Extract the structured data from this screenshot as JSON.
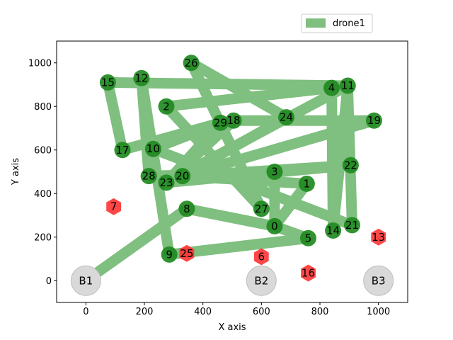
{
  "chart_data": {
    "type": "scatter",
    "xlabel": "X axis",
    "ylabel": "Y axis",
    "xlim": [
      -100,
      1100
    ],
    "ylim": [
      -100,
      1100
    ],
    "xticks": [
      0,
      200,
      400,
      600,
      800,
      1000
    ],
    "yticks": [
      0,
      200,
      400,
      600,
      800,
      1000
    ],
    "grid": false,
    "legend": {
      "placement": "top-right (above plot)",
      "entries": [
        {
          "name": "drone1",
          "color": "#7fbf7f"
        }
      ]
    },
    "colors": {
      "route": "#7fbf7f",
      "node": "#1f8a1f",
      "no_fly": "#ff3333",
      "base": "#d9d9d9"
    },
    "bases": [
      {
        "label": "B1",
        "x": 0,
        "y": 0
      },
      {
        "label": "B2",
        "x": 600,
        "y": 0
      },
      {
        "label": "B3",
        "x": 1000,
        "y": 0
      }
    ],
    "visited_points": [
      {
        "label": "0",
        "x": 645,
        "y": 250
      },
      {
        "label": "2",
        "x": 275,
        "y": 800
      },
      {
        "label": "3",
        "x": 645,
        "y": 500
      },
      {
        "label": "4",
        "x": 840,
        "y": 885
      },
      {
        "label": "5",
        "x": 760,
        "y": 195
      },
      {
        "label": "8",
        "x": 345,
        "y": 330
      },
      {
        "label": "9",
        "x": 285,
        "y": 120
      },
      {
        "label": "10",
        "x": 230,
        "y": 605
      },
      {
        "label": "11",
        "x": 895,
        "y": 895
      },
      {
        "label": "12",
        "x": 190,
        "y": 930
      },
      {
        "label": "14",
        "x": 845,
        "y": 230
      },
      {
        "label": "15",
        "x": 75,
        "y": 910
      },
      {
        "label": "17",
        "x": 125,
        "y": 600
      },
      {
        "label": "18",
        "x": 505,
        "y": 735
      },
      {
        "label": "19",
        "x": 985,
        "y": 735
      },
      {
        "label": "20",
        "x": 330,
        "y": 480
      },
      {
        "label": "21",
        "x": 910,
        "y": 255
      },
      {
        "label": "22",
        "x": 905,
        "y": 530
      },
      {
        "label": "23",
        "x": 275,
        "y": 450
      },
      {
        "label": "24",
        "x": 685,
        "y": 750
      },
      {
        "label": "26",
        "x": 360,
        "y": 1000
      },
      {
        "label": "27",
        "x": 600,
        "y": 330
      },
      {
        "label": "28",
        "x": 215,
        "y": 480
      },
      {
        "label": "29",
        "x": 460,
        "y": 725
      },
      {
        "label": "1",
        "x": 755,
        "y": 445
      }
    ],
    "no_fly_points": [
      {
        "label": "6",
        "x": 600,
        "y": 110
      },
      {
        "label": "7",
        "x": 95,
        "y": 340
      },
      {
        "label": "13",
        "x": 1000,
        "y": 200
      },
      {
        "label": "16",
        "x": 760,
        "y": 35
      },
      {
        "label": "25",
        "x": 345,
        "y": 125
      }
    ],
    "series": [
      {
        "name": "drone1",
        "route": [
          "B1",
          "8",
          "0",
          "3",
          "28",
          "12",
          "9",
          "5",
          "0",
          "1",
          "20",
          "22",
          "23",
          "18",
          "19",
          "20",
          "24",
          "26",
          "27",
          "2",
          "4",
          "14",
          "11",
          "23",
          "29",
          "17",
          "15",
          "11",
          "21",
          "10",
          "29"
        ]
      }
    ]
  }
}
